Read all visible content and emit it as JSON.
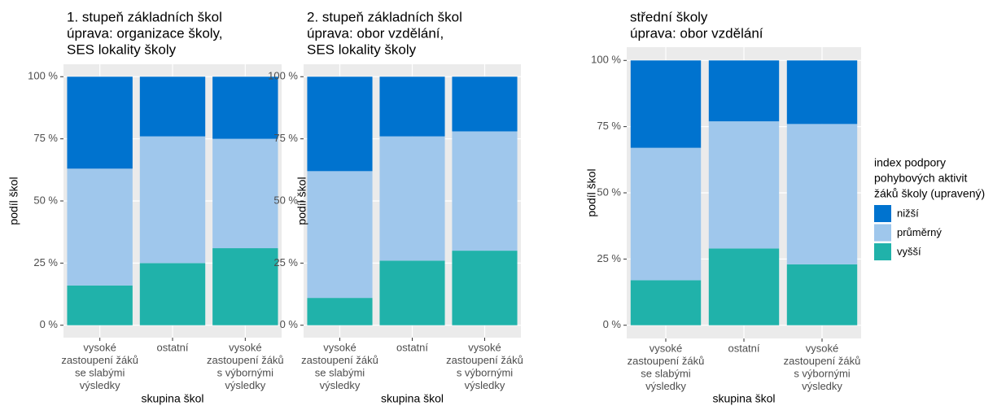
{
  "chart_data": [
    {
      "type": "bar",
      "stacked": true,
      "title": [
        "1. stupeň základních škol",
        "úprava: organizace školy,",
        "SES lokality školy"
      ],
      "categories": [
        [
          "vysoké",
          "zastoupení žáků",
          "se slabými",
          "výsledky"
        ],
        [
          "ostatní"
        ],
        [
          "vysoké",
          "zastoupení žáků",
          "s výbornými",
          "výsledky"
        ]
      ],
      "series": [
        {
          "name": "vyšší",
          "color": "#20b2aa",
          "values": [
            16,
            25,
            31
          ]
        },
        {
          "name": "průměrný",
          "color": "#9fc7ec",
          "values": [
            47,
            51,
            44
          ]
        },
        {
          "name": "nižší",
          "color": "#0073cf",
          "values": [
            37,
            24,
            25
          ]
        }
      ],
      "xlabel": "skupina škol",
      "ylabel": "podíl škol",
      "ylim": [
        -5,
        105
      ],
      "yticks": [
        {
          "value": 0,
          "label": "0 %"
        },
        {
          "value": 25,
          "label": "25 %"
        },
        {
          "value": 50,
          "label": "50 %"
        },
        {
          "value": 75,
          "label": "75 %"
        },
        {
          "value": 100,
          "label": "100 %"
        }
      ],
      "grid": true
    },
    {
      "type": "bar",
      "stacked": true,
      "title": [
        "2. stupeň základních škol",
        "úprava: obor vzdělání,",
        "SES lokality školy"
      ],
      "categories": [
        [
          "vysoké",
          "zastoupení žáků",
          "se slabými",
          "výsledky"
        ],
        [
          "ostatní"
        ],
        [
          "vysoké",
          "zastoupení žáků",
          "s výbornými",
          "výsledky"
        ]
      ],
      "series": [
        {
          "name": "vyšší",
          "color": "#20b2aa",
          "values": [
            11,
            26,
            30
          ]
        },
        {
          "name": "průměrný",
          "color": "#9fc7ec",
          "values": [
            51,
            50,
            48
          ]
        },
        {
          "name": "nižší",
          "color": "#0073cf",
          "values": [
            38,
            24,
            22
          ]
        }
      ],
      "xlabel": "skupina škol",
      "ylabel": "podíl škol",
      "ylim": [
        -5,
        105
      ],
      "yticks": [
        {
          "value": 0,
          "label": "0 %"
        },
        {
          "value": 25,
          "label": "25 %"
        },
        {
          "value": 50,
          "label": "50 %"
        },
        {
          "value": 75,
          "label": "75 %"
        },
        {
          "value": 100,
          "label": "100 %"
        }
      ],
      "grid": true
    },
    {
      "type": "bar",
      "stacked": true,
      "title": [
        "střední školy",
        "úprava: obor vzdělání"
      ],
      "categories": [
        [
          "vysoké",
          "zastoupení žáků",
          "se slabými",
          "výsledky"
        ],
        [
          "ostatní"
        ],
        [
          "vysoké",
          "zastoupení žáků",
          "s výbornými",
          "výsledky"
        ]
      ],
      "series": [
        {
          "name": "vyšší",
          "color": "#20b2aa",
          "values": [
            17,
            29,
            23
          ]
        },
        {
          "name": "průměrný",
          "color": "#9fc7ec",
          "values": [
            50,
            48,
            53
          ]
        },
        {
          "name": "nižší",
          "color": "#0073cf",
          "values": [
            33,
            23,
            24
          ]
        }
      ],
      "xlabel": "skupina škol",
      "ylabel": "podíl škol",
      "ylim": [
        -5,
        105
      ],
      "yticks": [
        {
          "value": 0,
          "label": "0 %"
        },
        {
          "value": 25,
          "label": "25 %"
        },
        {
          "value": 50,
          "label": "50 %"
        },
        {
          "value": 75,
          "label": "75 %"
        },
        {
          "value": 100,
          "label": "100 %"
        }
      ],
      "grid": true,
      "legend": "right",
      "legend_title": [
        "index podpory",
        "pohybových aktivit",
        "žáků školy (upravený)"
      ]
    }
  ]
}
